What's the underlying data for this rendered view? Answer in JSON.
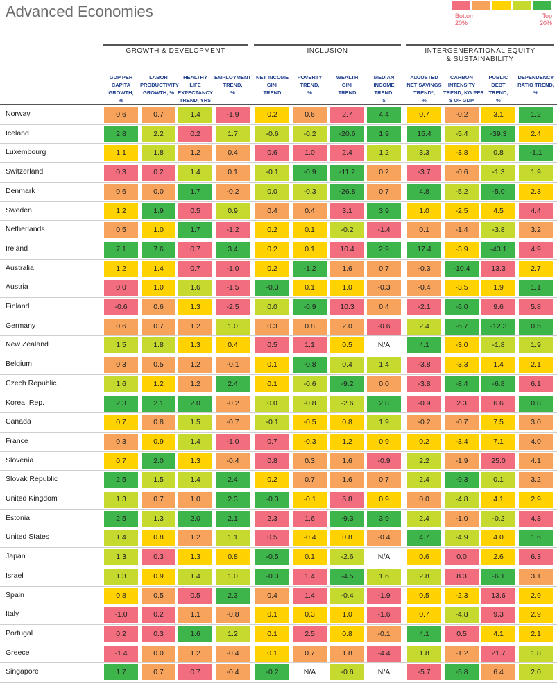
{
  "title": "Advanced Economies",
  "legend": {
    "bottom_label": "Bottom\n20%",
    "top_label": "Top\n20%",
    "colors": [
      "#f26d7d",
      "#f7a35c",
      "#ffd200",
      "#c5d92e",
      "#3db54a"
    ]
  },
  "groups": [
    {
      "label": "GROWTH & DEVELOPMENT"
    },
    {
      "label": "INCLUSION"
    },
    {
      "label": "INTERGENERATIONAL EQUITY\n& SUSTAINABILITY"
    }
  ],
  "columns": [
    "GDP PER\nCAPITA\nGROWTH,\n%",
    "LABOR\nPRODUCTIVITY\nGROWTH, %",
    "HEALTHY\nLIFE\nEXPECTANCY\nTREND, YRS",
    "EMPLOYMENT\nTREND,\n%",
    "NET INCOME\nGINI\nTREND",
    "POVERTY\nTREND,\n%",
    "WEALTH\nGINI\nTREND",
    "MEDIAN\nINCOME\nTREND,\n$",
    "ADJUSTED\nNET SAVINGS\nTREND*,\n%",
    "CARBON\nINTENSITY\nTREND, KG PER\n$ OF GDP",
    "PUBLIC\nDEBT\nTREND,\n%",
    "DEPENDENCY\nRATIO TREND,\n%"
  ],
  "chart_data": {
    "type": "table",
    "rows": [
      {
        "country": "Norway",
        "values": [
          "0.6",
          "0.7",
          "1.4",
          "-1.9",
          "0.2",
          "0.6",
          "2.7",
          "4.4",
          "0.7",
          "-0.2",
          "3.1",
          "1.2"
        ],
        "levels": [
          2,
          2,
          4,
          1,
          3,
          2,
          1,
          5,
          3,
          2,
          3,
          5
        ]
      },
      {
        "country": "Iceland",
        "values": [
          "2.8",
          "2.2",
          "0.2",
          "1.7",
          "-0.6",
          "-0.2",
          "-20.6",
          "1.9",
          "15.4",
          "-5.4",
          "-39.3",
          "2.4"
        ],
        "levels": [
          5,
          4,
          1,
          4,
          4,
          4,
          5,
          5,
          5,
          4,
          5,
          3
        ]
      },
      {
        "country": "Luxembourg",
        "values": [
          "1.1",
          "1.8",
          "1.2",
          "0.4",
          "0.6",
          "1.0",
          "2.4",
          "1.2",
          "3.3",
          "-3.8",
          "0.8",
          "-1.1"
        ],
        "levels": [
          3,
          4,
          2,
          2,
          1,
          1,
          1,
          4,
          4,
          3,
          4,
          5
        ]
      },
      {
        "country": "Switzerland",
        "values": [
          "0.3",
          "0.2",
          "1.4",
          "0.1",
          "-0.1",
          "-0.9",
          "-11.2",
          "0.2",
          "-3.7",
          "-0.6",
          "-1.3",
          "1.9"
        ],
        "levels": [
          1,
          1,
          4,
          2,
          4,
          5,
          5,
          2,
          1,
          2,
          4,
          4
        ]
      },
      {
        "country": "Denmark",
        "values": [
          "0.6",
          "0.0",
          "1.7",
          "-0.2",
          "0.0",
          "-0.3",
          "-26.8",
          "0.7",
          "4.8",
          "-5.2",
          "-5.0",
          "2.3"
        ],
        "levels": [
          2,
          2,
          5,
          2,
          4,
          4,
          5,
          2,
          5,
          4,
          5,
          3
        ]
      },
      {
        "country": "Sweden",
        "values": [
          "1.2",
          "1.9",
          "0.5",
          "0.9",
          "0.4",
          "0.4",
          "3.1",
          "3.9",
          "1.0",
          "-2.5",
          "4.5",
          "4.4"
        ],
        "levels": [
          3,
          5,
          1,
          4,
          2,
          2,
          1,
          5,
          3,
          3,
          3,
          1
        ]
      },
      {
        "country": "Netherlands",
        "values": [
          "0.5",
          "1.0",
          "1.7",
          "-1.2",
          "0.2",
          "0.1",
          "-0.2",
          "-1.4",
          "0.1",
          "-1.4",
          "-3.8",
          "3.2"
        ],
        "levels": [
          2,
          3,
          5,
          1,
          3,
          3,
          4,
          1,
          2,
          2,
          4,
          2
        ]
      },
      {
        "country": "Ireland",
        "values": [
          "7.1",
          "7.6",
          "0.7",
          "3.4",
          "0.2",
          "0.1",
          "10.4",
          "2.9",
          "17.4",
          "-3.9",
          "-43.1",
          "4.9"
        ],
        "levels": [
          5,
          5,
          1,
          5,
          3,
          3,
          1,
          5,
          5,
          3,
          5,
          1
        ]
      },
      {
        "country": "Australia",
        "values": [
          "1.2",
          "1.4",
          "0.7",
          "-1.0",
          "0.2",
          "-1.2",
          "1.6",
          "0.7",
          "-0.3",
          "-10.4",
          "13.3",
          "2.7"
        ],
        "levels": [
          3,
          3,
          1,
          1,
          3,
          5,
          2,
          2,
          2,
          5,
          1,
          3
        ]
      },
      {
        "country": "Austria",
        "values": [
          "0.0",
          "1.0",
          "1.6",
          "-1.5",
          "-0.3",
          "0.1",
          "1.0",
          "-0.3",
          "-0.4",
          "-3.5",
          "1.9",
          "1.1"
        ],
        "levels": [
          1,
          3,
          4,
          1,
          5,
          3,
          3,
          2,
          2,
          3,
          3,
          5
        ]
      },
      {
        "country": "Finland",
        "values": [
          "-0.6",
          "0.6",
          "1.3",
          "-2.5",
          "0.0",
          "-0.9",
          "10.3",
          "0.4",
          "-2.1",
          "-6.0",
          "9.6",
          "5.8"
        ],
        "levels": [
          1,
          2,
          3,
          1,
          4,
          5,
          1,
          2,
          1,
          5,
          1,
          1
        ]
      },
      {
        "country": "Germany",
        "values": [
          "0.6",
          "0.7",
          "1.2",
          "1.0",
          "0.3",
          "0.8",
          "2.0",
          "-0.6",
          "2.4",
          "-6.7",
          "-12.3",
          "0.5"
        ],
        "levels": [
          2,
          2,
          2,
          4,
          2,
          2,
          2,
          1,
          4,
          5,
          5,
          5
        ]
      },
      {
        "country": "New Zealand",
        "values": [
          "1.5",
          "1.8",
          "1.3",
          "0.4",
          "0.5",
          "1.1",
          "0.5",
          "N/A",
          "4.1",
          "-3.0",
          "-1.8",
          "1.9"
        ],
        "levels": [
          4,
          4,
          3,
          3,
          1,
          1,
          3,
          0,
          5,
          3,
          4,
          4
        ]
      },
      {
        "country": "Belgium",
        "values": [
          "0.3",
          "0.5",
          "1.2",
          "-0.1",
          "0.1",
          "-0.8",
          "0.4",
          "1.4",
          "-3.8",
          "-3.3",
          "1.4",
          "2.1"
        ],
        "levels": [
          2,
          2,
          2,
          2,
          3,
          5,
          4,
          4,
          1,
          3,
          3,
          3
        ]
      },
      {
        "country": "Czech Republic",
        "values": [
          "1.6",
          "1.2",
          "1.2",
          "2.4",
          "0.1",
          "-0.6",
          "-9.2",
          "0.0",
          "-3.8",
          "-8.4",
          "-6.8",
          "6.1"
        ],
        "levels": [
          4,
          3,
          2,
          5,
          3,
          4,
          5,
          2,
          1,
          5,
          5,
          1
        ]
      },
      {
        "country": "Korea, Rep.",
        "values": [
          "2.3",
          "2.1",
          "2.0",
          "-0.2",
          "0.0",
          "-0.8",
          "-2.6",
          "2.8",
          "-0.9",
          "2.3",
          "6.6",
          "0.8"
        ],
        "levels": [
          5,
          5,
          5,
          2,
          4,
          4,
          4,
          5,
          1,
          1,
          1,
          5
        ]
      },
      {
        "country": "Canada",
        "values": [
          "0.7",
          "0.8",
          "1.5",
          "-0.7",
          "-0.1",
          "-0.5",
          "0.8",
          "1.9",
          "-0.2",
          "-0.7",
          "7.5",
          "3.0"
        ],
        "levels": [
          3,
          2,
          4,
          2,
          4,
          3,
          3,
          4,
          2,
          2,
          3,
          2
        ]
      },
      {
        "country": "France",
        "values": [
          "0.3",
          "0.9",
          "1.4",
          "-1.0",
          "0.7",
          "-0.3",
          "1.2",
          "0.9",
          "0.2",
          "-3.4",
          "7.1",
          "4.0"
        ],
        "levels": [
          2,
          3,
          4,
          1,
          1,
          3,
          3,
          3,
          3,
          3,
          3,
          2
        ]
      },
      {
        "country": "Slovenia",
        "values": [
          "0.7",
          "2.0",
          "1.3",
          "-0.4",
          "0.8",
          "0.3",
          "1.6",
          "-0.9",
          "2.2",
          "-1.9",
          "25.0",
          "4.1"
        ],
        "levels": [
          3,
          5,
          3,
          2,
          1,
          2,
          2,
          1,
          4,
          2,
          1,
          2
        ]
      },
      {
        "country": "Slovak Republic",
        "values": [
          "2.5",
          "1.5",
          "1.4",
          "2.4",
          "0.2",
          "0.7",
          "1.6",
          "0.7",
          "2.4",
          "-9.3",
          "0.1",
          "3.2"
        ],
        "levels": [
          5,
          4,
          4,
          5,
          3,
          2,
          2,
          2,
          4,
          5,
          4,
          2
        ]
      },
      {
        "country": "United Kingdom",
        "values": [
          "1.3",
          "0.7",
          "1.0",
          "2.3",
          "-0.3",
          "-0.1",
          "5.8",
          "0.9",
          "0.0",
          "-4.8",
          "4.1",
          "2.9"
        ],
        "levels": [
          4,
          2,
          2,
          5,
          5,
          3,
          1,
          3,
          2,
          4,
          3,
          3
        ]
      },
      {
        "country": "Estonia",
        "values": [
          "2.5",
          "1.3",
          "2.0",
          "2.1",
          "2.3",
          "1.6",
          "-9.3",
          "3.9",
          "2.4",
          "-1.0",
          "-0.2",
          "4.3"
        ],
        "levels": [
          5,
          4,
          5,
          5,
          1,
          1,
          5,
          5,
          4,
          2,
          4,
          1
        ]
      },
      {
        "country": "United States",
        "values": [
          "1.4",
          "0.8",
          "1.2",
          "1.1",
          "0.5",
          "-0.4",
          "0.8",
          "-0.4",
          "4.7",
          "-4.9",
          "4.0",
          "1.6"
        ],
        "levels": [
          4,
          3,
          2,
          4,
          1,
          3,
          3,
          2,
          5,
          4,
          3,
          5
        ]
      },
      {
        "country": "Japan",
        "values": [
          "1.3",
          "0.3",
          "1.3",
          "0.8",
          "-0.5",
          "0.1",
          "-2.6",
          "N/A",
          "0.6",
          "0.0",
          "2.6",
          "6.3"
        ],
        "levels": [
          4,
          1,
          3,
          3,
          5,
          3,
          4,
          0,
          3,
          1,
          3,
          1
        ]
      },
      {
        "country": "Israel",
        "values": [
          "1.3",
          "0.9",
          "1.4",
          "1.0",
          "-0.3",
          "1.4",
          "-4.5",
          "1.6",
          "2.8",
          "8.3",
          "-6.1",
          "3.1"
        ],
        "levels": [
          4,
          3,
          4,
          4,
          5,
          1,
          5,
          4,
          4,
          1,
          5,
          2
        ]
      },
      {
        "country": "Spain",
        "values": [
          "0.8",
          "0.5",
          "0.5",
          "2.3",
          "0.4",
          "1.4",
          "-0.4",
          "-1.9",
          "0.5",
          "-2.3",
          "13.6",
          "2.9"
        ],
        "levels": [
          3,
          2,
          1,
          5,
          2,
          1,
          4,
          1,
          3,
          3,
          1,
          3
        ]
      },
      {
        "country": "Italy",
        "values": [
          "-1.0",
          "0.2",
          "1.1",
          "-0.8",
          "0.1",
          "0.3",
          "1.0",
          "-1.6",
          "0.7",
          "-4.8",
          "9.3",
          "2.9"
        ],
        "levels": [
          1,
          1,
          2,
          2,
          3,
          3,
          3,
          1,
          3,
          4,
          1,
          3
        ]
      },
      {
        "country": "Portugal",
        "values": [
          "0.2",
          "0.3",
          "1.6",
          "1.2",
          "0.1",
          "2.5",
          "0.8",
          "-0.1",
          "4.1",
          "0.5",
          "4.1",
          "2.1"
        ],
        "levels": [
          1,
          1,
          5,
          4,
          3,
          1,
          3,
          2,
          5,
          1,
          3,
          3
        ]
      },
      {
        "country": "Greece",
        "values": [
          "-1.4",
          "0.0",
          "1.2",
          "-0.4",
          "0.1",
          "0.7",
          "1.8",
          "-4.4",
          "1.8",
          "-1.2",
          "21.7",
          "1.8"
        ],
        "levels": [
          1,
          2,
          2,
          2,
          3,
          2,
          2,
          1,
          4,
          2,
          1,
          4
        ]
      },
      {
        "country": "Singapore",
        "values": [
          "1.7",
          "0.7",
          "0.7",
          "-0.4",
          "-0.2",
          "N/A",
          "-0.6",
          "N/A",
          "-5.7",
          "-5.8",
          "6.4",
          "2.0"
        ],
        "levels": [
          5,
          2,
          1,
          2,
          5,
          0,
          4,
          0,
          1,
          5,
          2,
          4
        ]
      }
    ]
  }
}
